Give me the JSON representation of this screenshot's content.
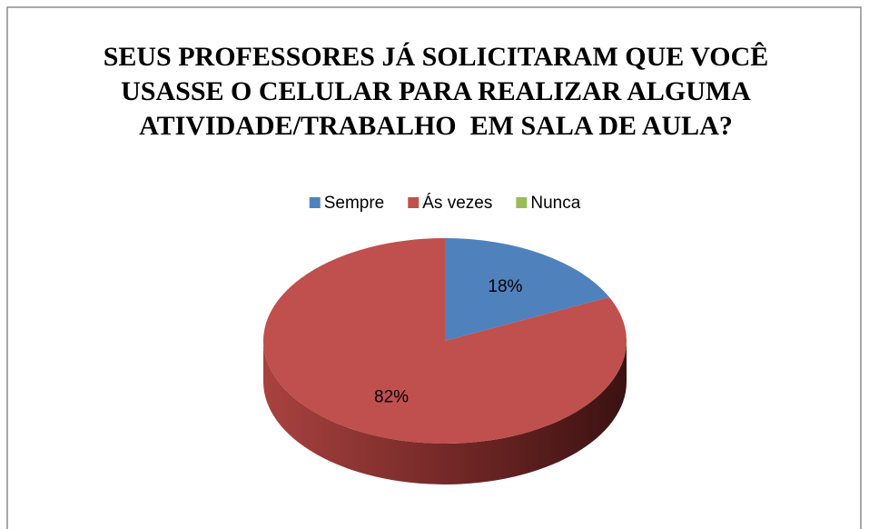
{
  "chart_data": {
    "type": "pie",
    "title": "SEUS PROFESSORES JÁ SOLICITARAM QUE VOCÊ USASSE O CELULAR PARA REALIZAR ALGUMA ATIVIDADE/TRABALHO  EM SALA DE AULA?",
    "categories": [
      "Sempre",
      "Ás vezes",
      "Nunca"
    ],
    "values": [
      18,
      82,
      0
    ],
    "value_labels": [
      "18%",
      "82%",
      null
    ],
    "colors": [
      "#4f81bd",
      "#c0504d",
      "#9bbb59"
    ],
    "legend": "top"
  }
}
